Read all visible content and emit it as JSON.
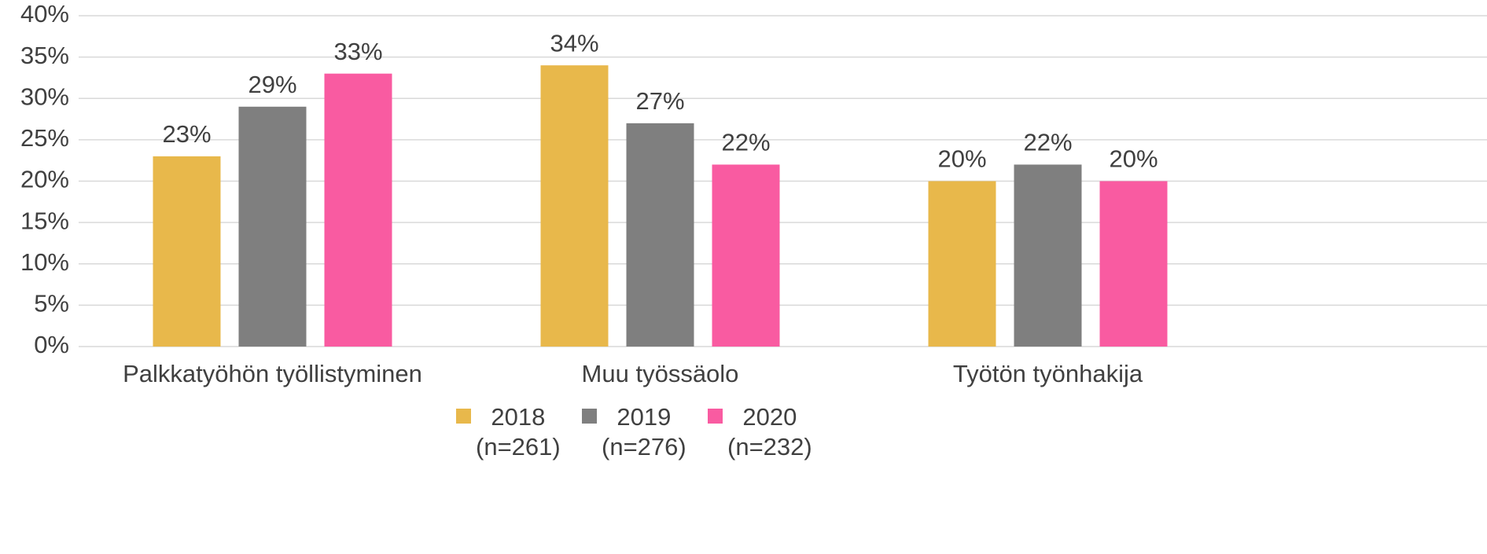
{
  "chart_data": {
    "type": "bar",
    "categories": [
      "Palkkatyöhön työllistyminen",
      "Muu työssäolo",
      "Työtön työnhakija"
    ],
    "series": [
      {
        "name": "2018\n(n=261)",
        "color": "#e8b84b",
        "values": [
          23,
          34,
          20
        ],
        "value_labels": [
          "23%",
          "34%",
          "20%"
        ]
      },
      {
        "name": "2019\n(n=276)",
        "color": "#7f7f7f",
        "values": [
          29,
          27,
          22
        ],
        "value_labels": [
          "29%",
          "27%",
          "22%"
        ]
      },
      {
        "name": "2020\n(n=232)",
        "color": "#f95ba1",
        "values": [
          33,
          22,
          20
        ],
        "value_labels": [
          "33%",
          "22%",
          "20%"
        ]
      }
    ],
    "ylim": [
      0,
      40
    ],
    "yticks": [
      {
        "value": 0,
        "label": "0%"
      },
      {
        "value": 5,
        "label": "5%"
      },
      {
        "value": 10,
        "label": "10%"
      },
      {
        "value": 15,
        "label": "15%"
      },
      {
        "value": 20,
        "label": "20%"
      },
      {
        "value": 25,
        "label": "25%"
      },
      {
        "value": 30,
        "label": "30%"
      },
      {
        "value": 35,
        "label": "35%"
      },
      {
        "value": 40,
        "label": "40%"
      }
    ],
    "grid": true,
    "legend": "bottom"
  }
}
